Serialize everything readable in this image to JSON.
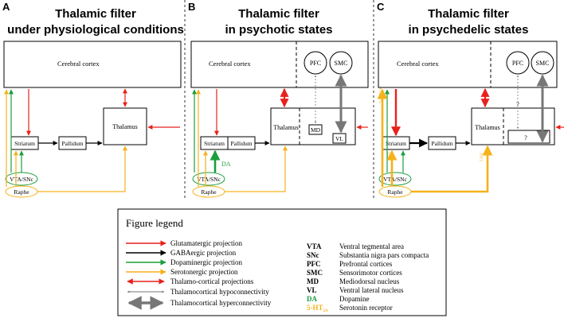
{
  "panels": {
    "a": {
      "letter": "A",
      "title1": "Thalamic filter",
      "title2": "under physiological conditions"
    },
    "b": {
      "letter": "B",
      "title1": "Thalamic filter",
      "title2": "in psychotic states"
    },
    "c": {
      "letter": "C",
      "title1": "Thalamic filter",
      "title2": "in psychedelic states"
    }
  },
  "nodes": {
    "cortex": "Cerebral cortex",
    "thalamus": "Thalamus",
    "striatum": "Striatum",
    "pallidum": "Pallidum",
    "vta": "VTA/SNc",
    "raphe": "Raphe",
    "pfc": "PFC",
    "smc": "SMC",
    "md": "MD",
    "vl": "VL",
    "da": "DA",
    "q": "?",
    "ht_side": "5-HT2A",
    "ht_small": "5-HT"
  },
  "legend": {
    "title": "Figure legend",
    "arrows": [
      {
        "label": "Glutamatergic projection",
        "color": "#e8211d"
      },
      {
        "label": "GABAergic projection",
        "color": "#000000"
      },
      {
        "label": "Dopaminergic projection",
        "color": "#1a9e3c"
      },
      {
        "label": "Serotonergic projection",
        "color": "#f5b21a"
      },
      {
        "label": "Thalamo-cortical projections",
        "color": "#e8211d"
      },
      {
        "label": "Thalamocortical hypoconnectivity",
        "color": "#777777"
      },
      {
        "label": "Thalamocortical hyperconnectivity",
        "color": "#777777"
      }
    ],
    "abbreviations": [
      {
        "abbr": "VTA",
        "full": "Ventral tegmental area",
        "color": "#000000"
      },
      {
        "abbr": "SNc",
        "full": "Substantia nigra pars compacta",
        "color": "#000000"
      },
      {
        "abbr": "PFC",
        "full": "Prefrontal cortices",
        "color": "#000000"
      },
      {
        "abbr": "SMC",
        "full": "Sensorimotor cortices",
        "color": "#000000"
      },
      {
        "abbr": "MD",
        "full": "Mediodorsal nucleus",
        "color": "#000000"
      },
      {
        "abbr": "VL",
        "full": "Ventral lateral nucleus",
        "color": "#000000"
      },
      {
        "abbr": "DA",
        "full": "Dopamine",
        "color": "#1a9e3c"
      },
      {
        "abbr": "5-HT",
        "sub": "2A",
        "full": "Serotonin receptor",
        "color": "#f5b21a"
      }
    ]
  },
  "colors": {
    "red": "#e8211d",
    "green": "#1a9e3c",
    "yellow": "#f5b21a",
    "gray": "#777777",
    "black": "#000000"
  }
}
